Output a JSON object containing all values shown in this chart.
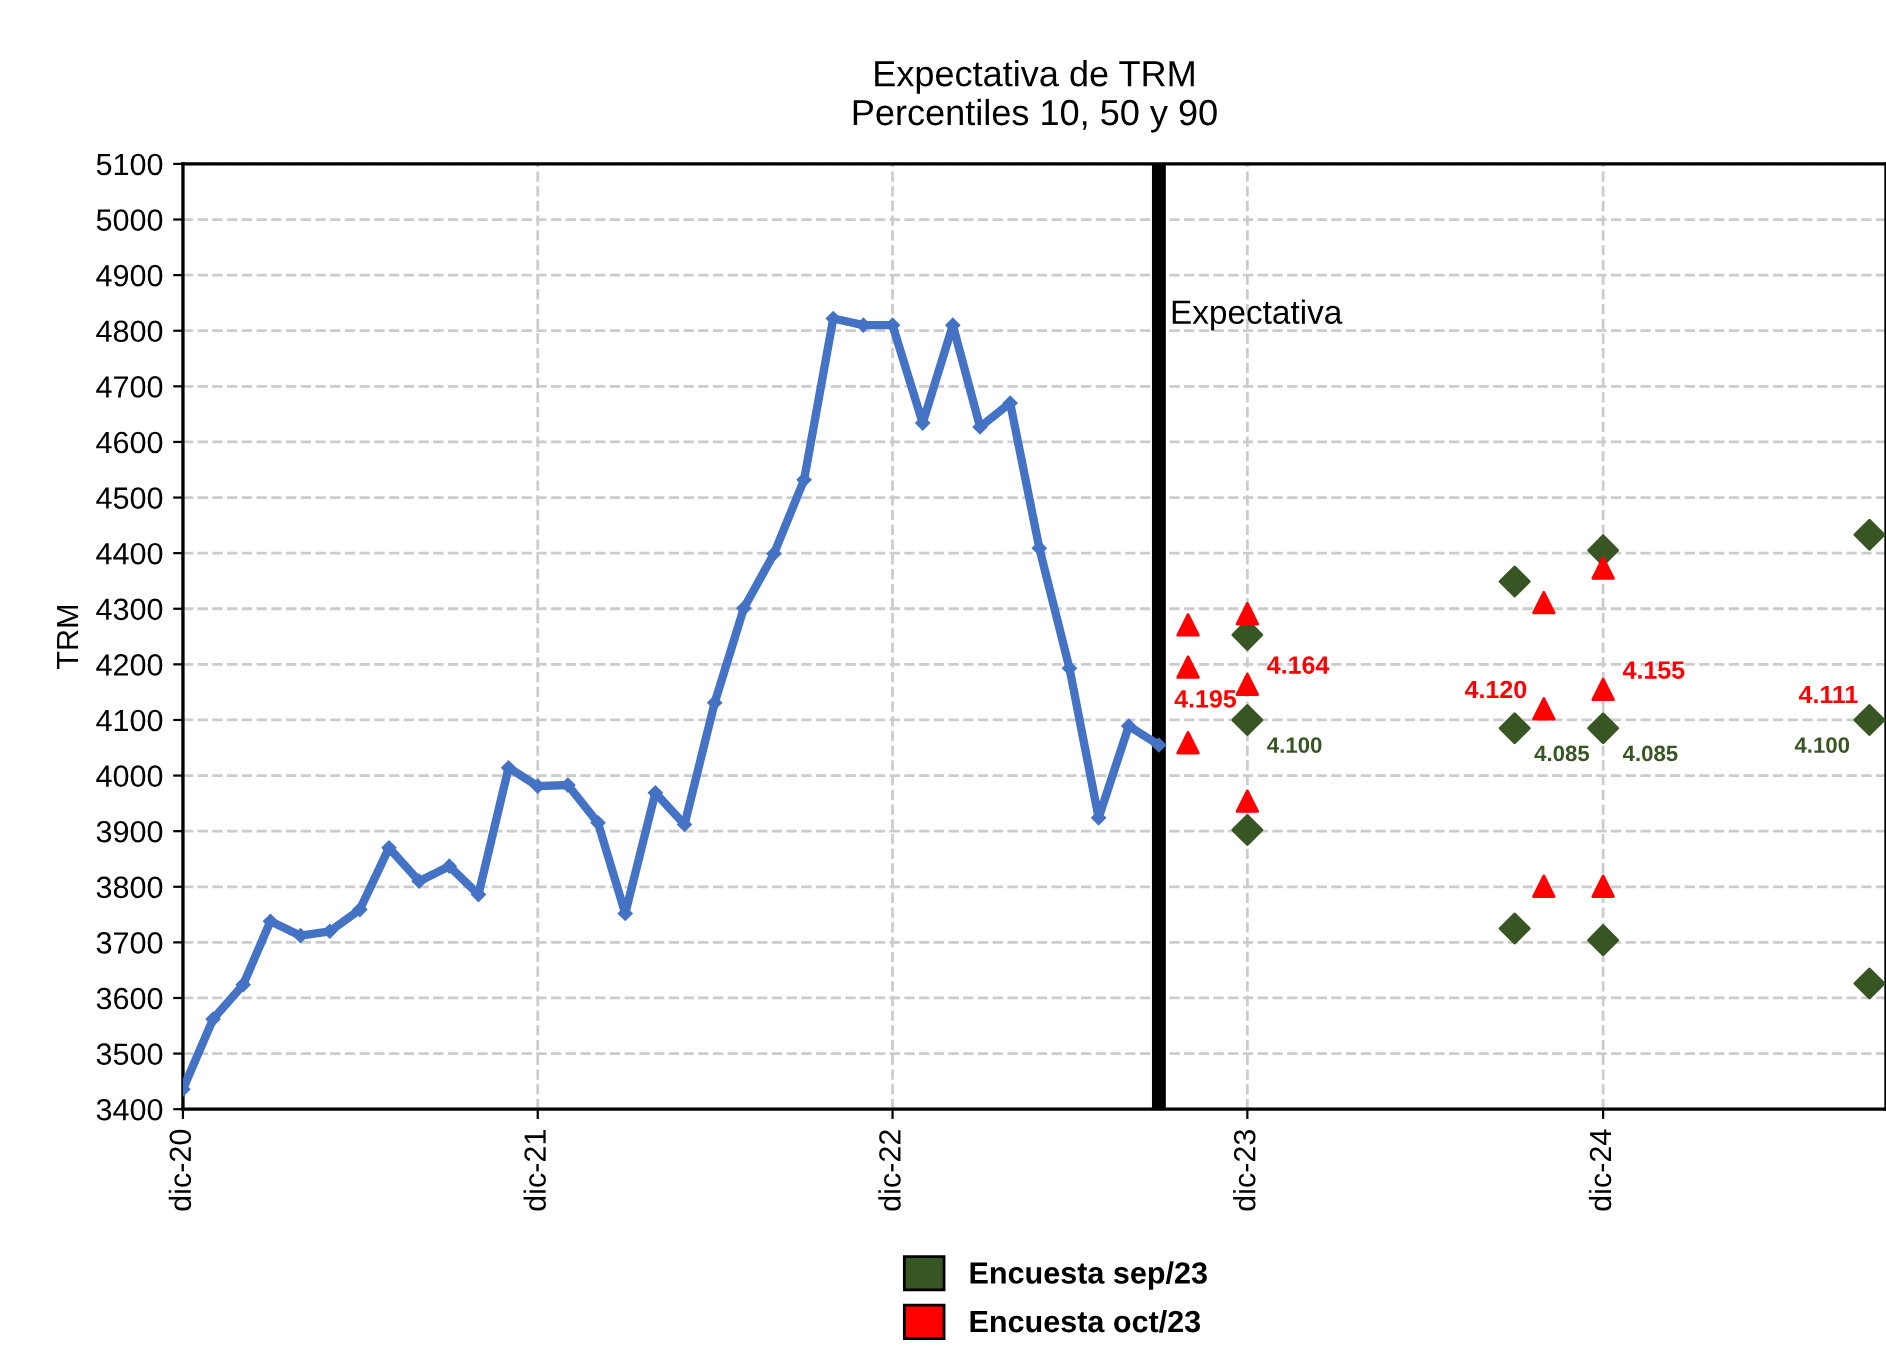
{
  "chart_data": {
    "type": "line",
    "title": "Expectativa de TRM\nPercentiles 10, 50 y 90",
    "ylabel": "TRM",
    "xlim": [
      "2020-12",
      "2025-09-18"
    ],
    "ylim": [
      3400,
      5100
    ],
    "xticks": [
      {
        "value": "2020-12",
        "label": "dic-20"
      },
      {
        "value": "2021-12",
        "label": "dic-21"
      },
      {
        "value": "2022-12",
        "label": "dic-22"
      },
      {
        "value": "2023-12",
        "label": "dic-23"
      },
      {
        "value": "2024-12",
        "label": "dic-24"
      }
    ],
    "yticks": [
      3400,
      3500,
      3600,
      3700,
      3800,
      3900,
      4000,
      4100,
      4200,
      4300,
      4400,
      4500,
      4600,
      4700,
      4800,
      4900,
      5000,
      5100
    ],
    "grid": true,
    "legend": "bottom",
    "series": [
      {
        "color": "#4472c4",
        "marker": "diamond",
        "x": [
          "2020-12",
          "2021-01",
          "2021-02",
          "2021-03",
          "2021-04",
          "2021-05",
          "2021-06",
          "2021-07",
          "2021-08",
          "2021-09",
          "2021-10",
          "2021-11",
          "2021-12",
          "2022-01",
          "2022-02",
          "2022-03",
          "2022-04",
          "2022-05",
          "2022-06",
          "2022-07",
          "2022-08",
          "2022-09",
          "2022-10",
          "2022-11",
          "2022-12",
          "2023-01",
          "2023-02",
          "2023-03",
          "2023-04",
          "2023-05",
          "2023-06",
          "2023-07",
          "2023-08",
          "2023-09"
        ],
        "values": [
          3436,
          3562,
          3624,
          3738,
          3712,
          3720,
          3759,
          3870,
          3810,
          3837,
          3786,
          4014,
          3981,
          3983,
          3915,
          3752,
          3969,
          3912,
          4131,
          4301,
          4399,
          4532,
          4822,
          4810,
          4810,
          4634,
          4810,
          4627,
          4670,
          4409,
          4193,
          3924,
          4089,
          4055
        ]
      },
      {
        "type": "scatter",
        "name": "Encuesta sep/23",
        "color": "#375623",
        "marker": "diamond",
        "x": [
          "2023-12",
          "2023-12",
          "2023-12",
          "2024-09",
          "2024-09",
          "2024-09",
          "2024-12",
          "2024-12",
          "2024-12",
          "2025-09",
          "2025-09",
          "2025-09"
        ],
        "values": [
          4253,
          4100,
          3902,
          4349,
          4085,
          3725,
          4405,
          4085,
          3704,
          4433,
          4100,
          3626
        ],
        "value_labels": [
          null,
          "4.100",
          null,
          null,
          "4.085",
          null,
          null,
          "4.085",
          null,
          null,
          "4.100",
          null
        ]
      },
      {
        "type": "scatter",
        "name": "Encuesta oct/23",
        "color": "#ff0000",
        "marker": "triangle",
        "x": [
          "2023-10",
          "2023-10",
          "2023-10",
          "2023-12",
          "2023-12",
          "2023-12",
          "2024-10",
          "2024-10",
          "2024-10",
          "2024-12",
          "2024-12",
          "2024-12"
        ],
        "values": [
          4271,
          4195,
          4059,
          4291,
          4164,
          3954,
          4311,
          4120,
          3801,
          4373,
          4155,
          3801
        ],
        "value_labels": [
          null,
          "4.195",
          null,
          null,
          "4.164",
          null,
          null,
          "4.120",
          null,
          null,
          "4.155",
          null
        ]
      }
    ],
    "ref_lines": [
      {
        "axis": "x",
        "value": "2023-09",
        "label": "Expectativa",
        "color": "#000000"
      }
    ],
    "annotations": [
      {
        "text": "4.111",
        "x": "2025-09",
        "y": 4111
      }
    ]
  }
}
